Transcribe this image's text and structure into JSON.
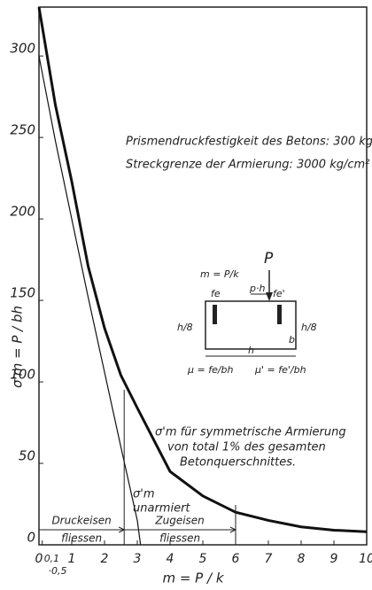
{
  "chart_data": {
    "type": "line",
    "ylabel": "σ'm = P / bh",
    "xlabel": "m = P / k",
    "xlim": [
      0,
      10
    ],
    "ylim": [
      0,
      330
    ],
    "xticks": [
      0,
      {
        "value": 0.1,
        "label": "0,1"
      },
      1,
      2,
      3,
      4,
      5,
      6,
      7,
      8,
      9,
      10
    ],
    "xtick_extra": {
      "value": 0.5,
      "label": "·0,5"
    },
    "yticks": [
      0,
      50,
      100,
      150,
      200,
      250,
      300
    ],
    "series": [
      {
        "color": "#111",
        "width": 3,
        "x": [
          0,
          0.5,
          1,
          1.5,
          2,
          2.5,
          3,
          4,
          5,
          6,
          7,
          8,
          9,
          10
        ],
        "values": [
          330,
          270,
          223,
          171,
          133,
          104,
          84,
          45,
          30,
          20,
          15,
          11,
          9,
          8
        ]
      },
      {
        "color": "#111",
        "width": 1.2,
        "x": [
          0,
          0.5,
          1,
          1.5,
          2,
          2.5,
          3,
          3.1
        ],
        "values": [
          300,
          248,
          200,
          152,
          106,
          60,
          15,
          0
        ]
      }
    ],
    "ranges": [
      {
        "label_lines": [
          "Druckeisen",
          "fliessen"
        ],
        "from": 0,
        "to": 2.6
      },
      {
        "label_lines": [
          "Zugeisen",
          "fliessen"
        ],
        "from": 2.6,
        "to": 6
      }
    ],
    "info": [
      "Prismendruckfestigkeit des Betons: 300 kg/cm²",
      "Streckgrenze der Armierung: 3000 kg/cm²"
    ],
    "label_thick": [
      "σ'm für symmetrische Armierung",
      "von total 1% des gesamten",
      "Betonquerschnittes."
    ],
    "label_thin": [
      "σ'm",
      "unarmiert"
    ],
    "inset": {
      "m": "m = P/k",
      "P": "P",
      "ph": "p·h",
      "fe": "fe",
      "fe2": "fe'",
      "h8": "h/8",
      "h8b": "h/8",
      "h": "h",
      "b": "b",
      "mu": "μ = fe/bh",
      "mu2": "μ' = fe'/bh"
    }
  }
}
